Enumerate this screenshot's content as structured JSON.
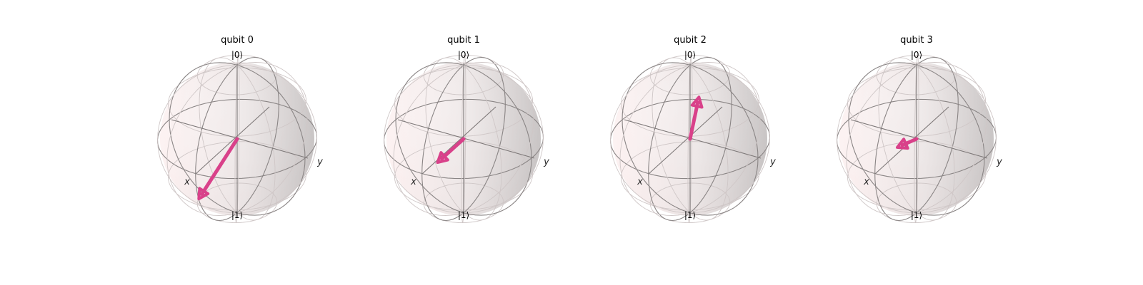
{
  "figure": {
    "vector_color": "#d9418a",
    "sphere_edge_color": "#8a8585",
    "sphere_fill_light": "#fbeeee",
    "sphere_fill_dark": "#c9c5c5",
    "qubits": [
      {
        "title": "qubit 0",
        "label_zero": "|0⟩",
        "label_one": "|1⟩",
        "label_x": "x",
        "label_y": "y",
        "vector": [
          0.92,
          0.0,
          -0.38
        ]
      },
      {
        "title": "qubit 1",
        "label_zero": "|0⟩",
        "label_one": "|1⟩",
        "label_x": "x",
        "label_y": "y",
        "vector": [
          0.3,
          -0.2,
          -0.23
        ]
      },
      {
        "title": "qubit 2",
        "label_zero": "|0⟩",
        "label_one": "|1⟩",
        "label_x": "x",
        "label_y": "y",
        "vector": [
          0.0,
          0.13,
          0.6
        ]
      },
      {
        "title": "qubit 3",
        "label_zero": "|0⟩",
        "label_one": "|1⟩",
        "label_x": "x",
        "label_y": "y",
        "vector": [
          0.3,
          -0.1,
          0.0
        ]
      }
    ]
  }
}
